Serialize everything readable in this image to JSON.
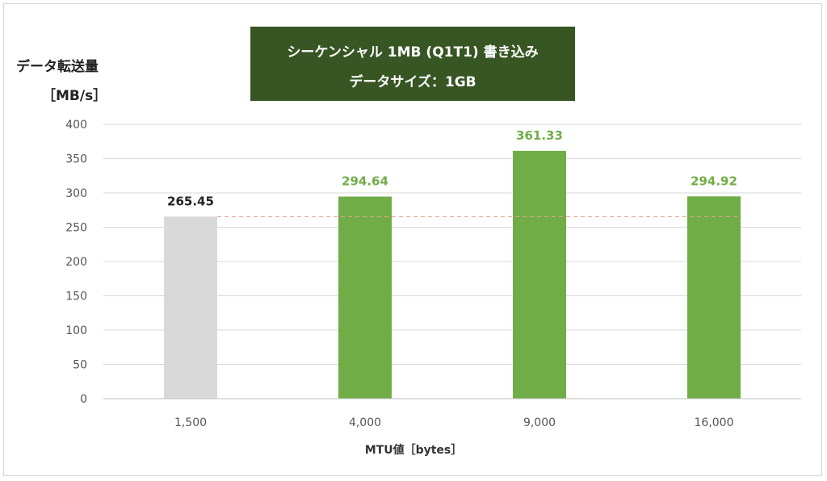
{
  "chart_data": {
    "type": "bar",
    "title": "シーケンシャル 1MB (Q1T1) 書き込み",
    "subtitle": "データサイズ：1GB",
    "ylabel_line1": "データ転送量",
    "ylabel_line2": "［MB/s］",
    "xlabel": "MTU値［bytes］",
    "categories": [
      "1,500",
      "4,000",
      "9,000",
      "16,000"
    ],
    "values": [
      265.45,
      294.64,
      361.33,
      294.92
    ],
    "value_labels": [
      "265.45",
      "294.64",
      "361.33",
      "294.92"
    ],
    "ylim": [
      0,
      400
    ],
    "yticks": [
      "0",
      "50",
      "100",
      "150",
      "200",
      "250",
      "300",
      "350",
      "400"
    ],
    "baseline_reference": 265.45,
    "grid": true,
    "colors": {
      "baseline_bar": "#d9d9d9",
      "bar": "#70ad47",
      "baseline_label": "#222222",
      "label": "#70ad47",
      "reference_line": "#e8a090",
      "grid": "#d9d9d9",
      "title_bg": "#375623"
    }
  }
}
